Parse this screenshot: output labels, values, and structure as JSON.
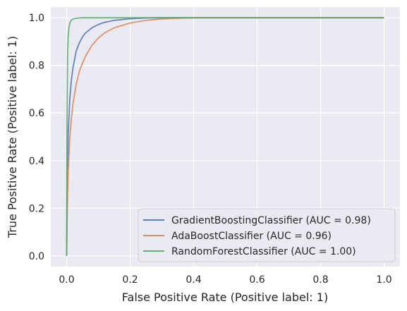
{
  "chart_data": {
    "type": "line",
    "xlabel": "False Positive Rate (Positive label: 1)",
    "ylabel": "True Positive Rate (Positive label: 1)",
    "xlim": [
      -0.05,
      1.05
    ],
    "ylim": [
      -0.045,
      1.045
    ],
    "xticks": [
      0.0,
      0.2,
      0.4,
      0.6,
      0.8,
      1.0
    ],
    "yticks": [
      0.0,
      0.2,
      0.4,
      0.6,
      0.8,
      1.0
    ],
    "xtick_labels": [
      "0.0",
      "0.2",
      "0.4",
      "0.6",
      "0.8",
      "1.0"
    ],
    "ytick_labels": [
      "0.0",
      "0.2",
      "0.4",
      "0.6",
      "0.8",
      "1.0"
    ],
    "grid": true,
    "background": "#eaeaf2",
    "legend_position": "lower right",
    "series": [
      {
        "name": "GradientBoostingClassifier (AUC = 0.98)",
        "color": "#4c72b0",
        "x": [
          0,
          0.002,
          0.005,
          0.01,
          0.015,
          0.02,
          0.03,
          0.04,
          0.05,
          0.06,
          0.08,
          0.1,
          0.12,
          0.15,
          0.2,
          0.25,
          0.3,
          0.4,
          0.5,
          0.6,
          0.7,
          0.8,
          0.9,
          1.0
        ],
        "y": [
          0,
          0.3,
          0.52,
          0.66,
          0.74,
          0.79,
          0.86,
          0.895,
          0.92,
          0.937,
          0.958,
          0.972,
          0.981,
          0.989,
          0.996,
          0.999,
          1.0,
          1.0,
          1.0,
          1.0,
          1.0,
          1.0,
          1.0,
          1.0
        ]
      },
      {
        "name": "AdaBoostClassifier (AUC = 0.96)",
        "color": "#dd8452",
        "x": [
          0,
          0.002,
          0.005,
          0.01,
          0.015,
          0.02,
          0.03,
          0.04,
          0.05,
          0.06,
          0.08,
          0.1,
          0.12,
          0.15,
          0.2,
          0.25,
          0.3,
          0.35,
          0.4,
          0.5,
          0.6,
          0.7,
          0.8,
          0.9,
          1.0
        ],
        "y": [
          0,
          0.2,
          0.36,
          0.5,
          0.58,
          0.64,
          0.72,
          0.775,
          0.81,
          0.84,
          0.885,
          0.915,
          0.937,
          0.958,
          0.978,
          0.989,
          0.995,
          0.998,
          1.0,
          1.0,
          1.0,
          1.0,
          1.0,
          1.0,
          1.0
        ]
      },
      {
        "name": "RandomForestClassifier (AUC = 1.00)",
        "color": "#55a868",
        "x": [
          0,
          0.001,
          0.003,
          0.005,
          0.008,
          0.01,
          0.015,
          0.02,
          0.03,
          0.04,
          0.05,
          0.1,
          0.2,
          0.4,
          0.6,
          0.8,
          1.0
        ],
        "y": [
          0,
          0.55,
          0.85,
          0.93,
          0.965,
          0.978,
          0.99,
          0.995,
          0.998,
          0.999,
          1.0,
          1.0,
          1.0,
          1.0,
          1.0,
          1.0,
          1.0
        ]
      }
    ]
  }
}
